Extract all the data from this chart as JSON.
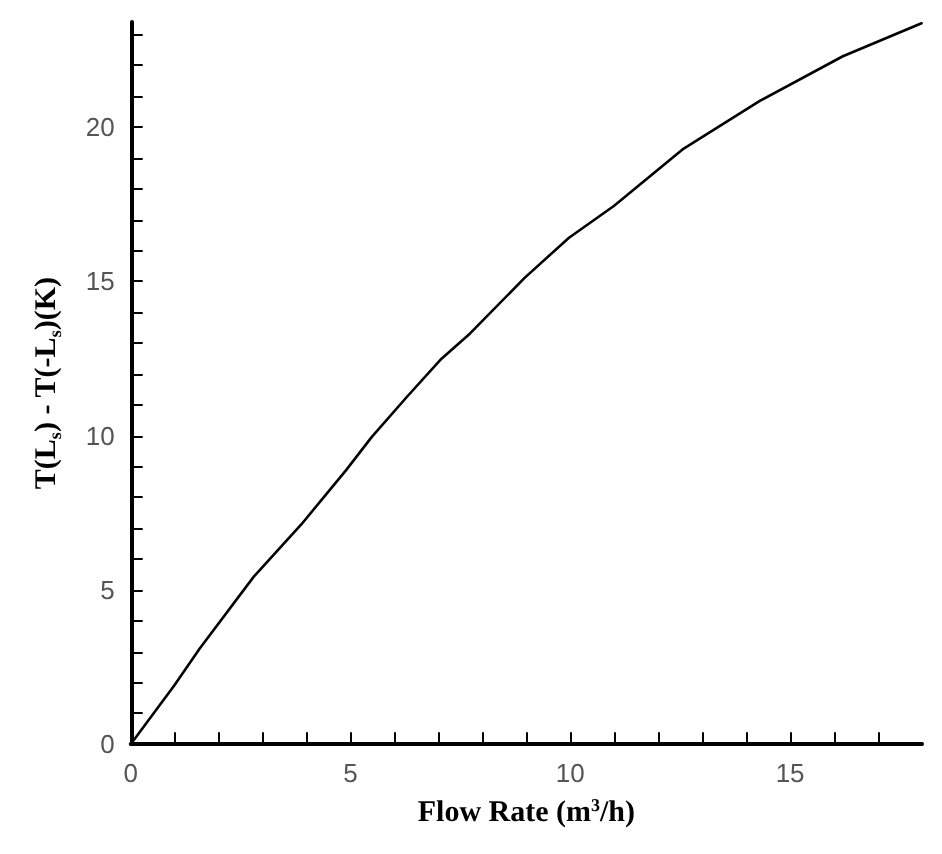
{
  "chart_data": {
    "type": "line",
    "xlabel": "Flow Rate (m$^{3}$/h)",
    "ylabel": "T(L$_{s}$) - T(-L$_{s}$)(K)",
    "x": [
      0,
      0.99,
      1.57,
      2.8,
      3.88,
      4.9,
      5.48,
      6.28,
      7.07,
      7.72,
      8.96,
      9.97,
      10.99,
      12.58,
      14.32,
      16.2,
      17.99
    ],
    "series": [
      {
        "color": "#000000",
        "values": [
          0,
          1.9,
          3.1,
          5.43,
          7.12,
          8.88,
          9.95,
          11.25,
          12.49,
          13.31,
          15.11,
          16.41,
          17.44,
          19.3,
          20.85,
          22.29,
          23.36
        ]
      }
    ],
    "xlim": [
      0,
      18
    ],
    "xticks": [
      0,
      {
        "value": 1,
        "label": null
      },
      {
        "value": 2,
        "label": null
      },
      {
        "value": 3,
        "label": null
      },
      {
        "value": 4,
        "label": null
      },
      5,
      {
        "value": 6,
        "label": null
      },
      {
        "value": 7,
        "label": null
      },
      {
        "value": 8,
        "label": null
      },
      {
        "value": 9,
        "label": null
      },
      10,
      {
        "value": 11,
        "label": null
      },
      {
        "value": 12,
        "label": null
      },
      {
        "value": 13,
        "label": null
      },
      {
        "value": 14,
        "label": null
      },
      15,
      {
        "value": 16,
        "label": null
      },
      {
        "value": 17,
        "label": null
      }
    ],
    "ylim": [
      0,
      23.4
    ],
    "yticks": [
      0,
      {
        "value": 1,
        "label": null
      },
      {
        "value": 2,
        "label": null
      },
      {
        "value": 3,
        "label": null
      },
      {
        "value": 4,
        "label": null
      },
      5,
      {
        "value": 6,
        "label": null
      },
      {
        "value": 7,
        "label": null
      },
      {
        "value": 8,
        "label": null
      },
      {
        "value": 9,
        "label": null
      },
      10,
      {
        "value": 11,
        "label": null
      },
      {
        "value": 12,
        "label": null
      },
      {
        "value": 13,
        "label": null
      },
      {
        "value": 14,
        "label": null
      },
      15,
      {
        "value": 16,
        "label": null
      },
      {
        "value": 17,
        "label": null
      },
      {
        "value": 18,
        "label": null
      },
      {
        "value": 19,
        "label": null
      },
      20,
      {
        "value": 21,
        "label": null
      },
      {
        "value": 22,
        "label": null
      },
      {
        "value": 23,
        "label": null
      }
    ],
    "grid": false,
    "marker": "none",
    "line_style": "solid"
  }
}
